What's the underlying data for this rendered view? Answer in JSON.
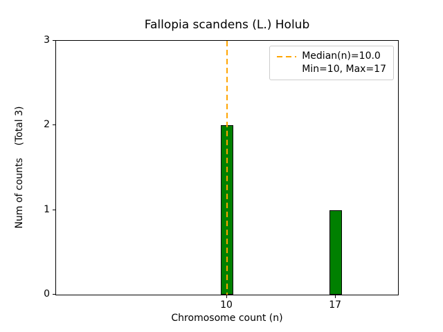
{
  "chart_data": {
    "type": "bar",
    "title": "Fallopia scandens (L.) Holub",
    "xlabel": "Chromosome count (n)",
    "ylabel": "Num of counts    (Total 3)",
    "x": [
      10,
      17
    ],
    "values": [
      2,
      1
    ],
    "categories": [
      "10",
      "17"
    ],
    "total_counts": 3,
    "bar_color": "#008000",
    "bar_edge_color": "#000000",
    "bar_width_units": 0.8,
    "xlim": [
      -1,
      21
    ],
    "ylim": [
      0,
      3
    ],
    "xticks": [
      10,
      17
    ],
    "yticks": [
      0,
      1,
      2,
      3
    ],
    "grid": false,
    "median_line": {
      "x": 10,
      "color": "#FFA500",
      "style": "dashed"
    },
    "legend": {
      "position": "upper right",
      "entries": [
        {
          "label": "Median(n)=10.0",
          "sample": "orange-dashed-line"
        },
        {
          "label": "Min=10, Max=17",
          "sample": "none"
        }
      ]
    }
  }
}
